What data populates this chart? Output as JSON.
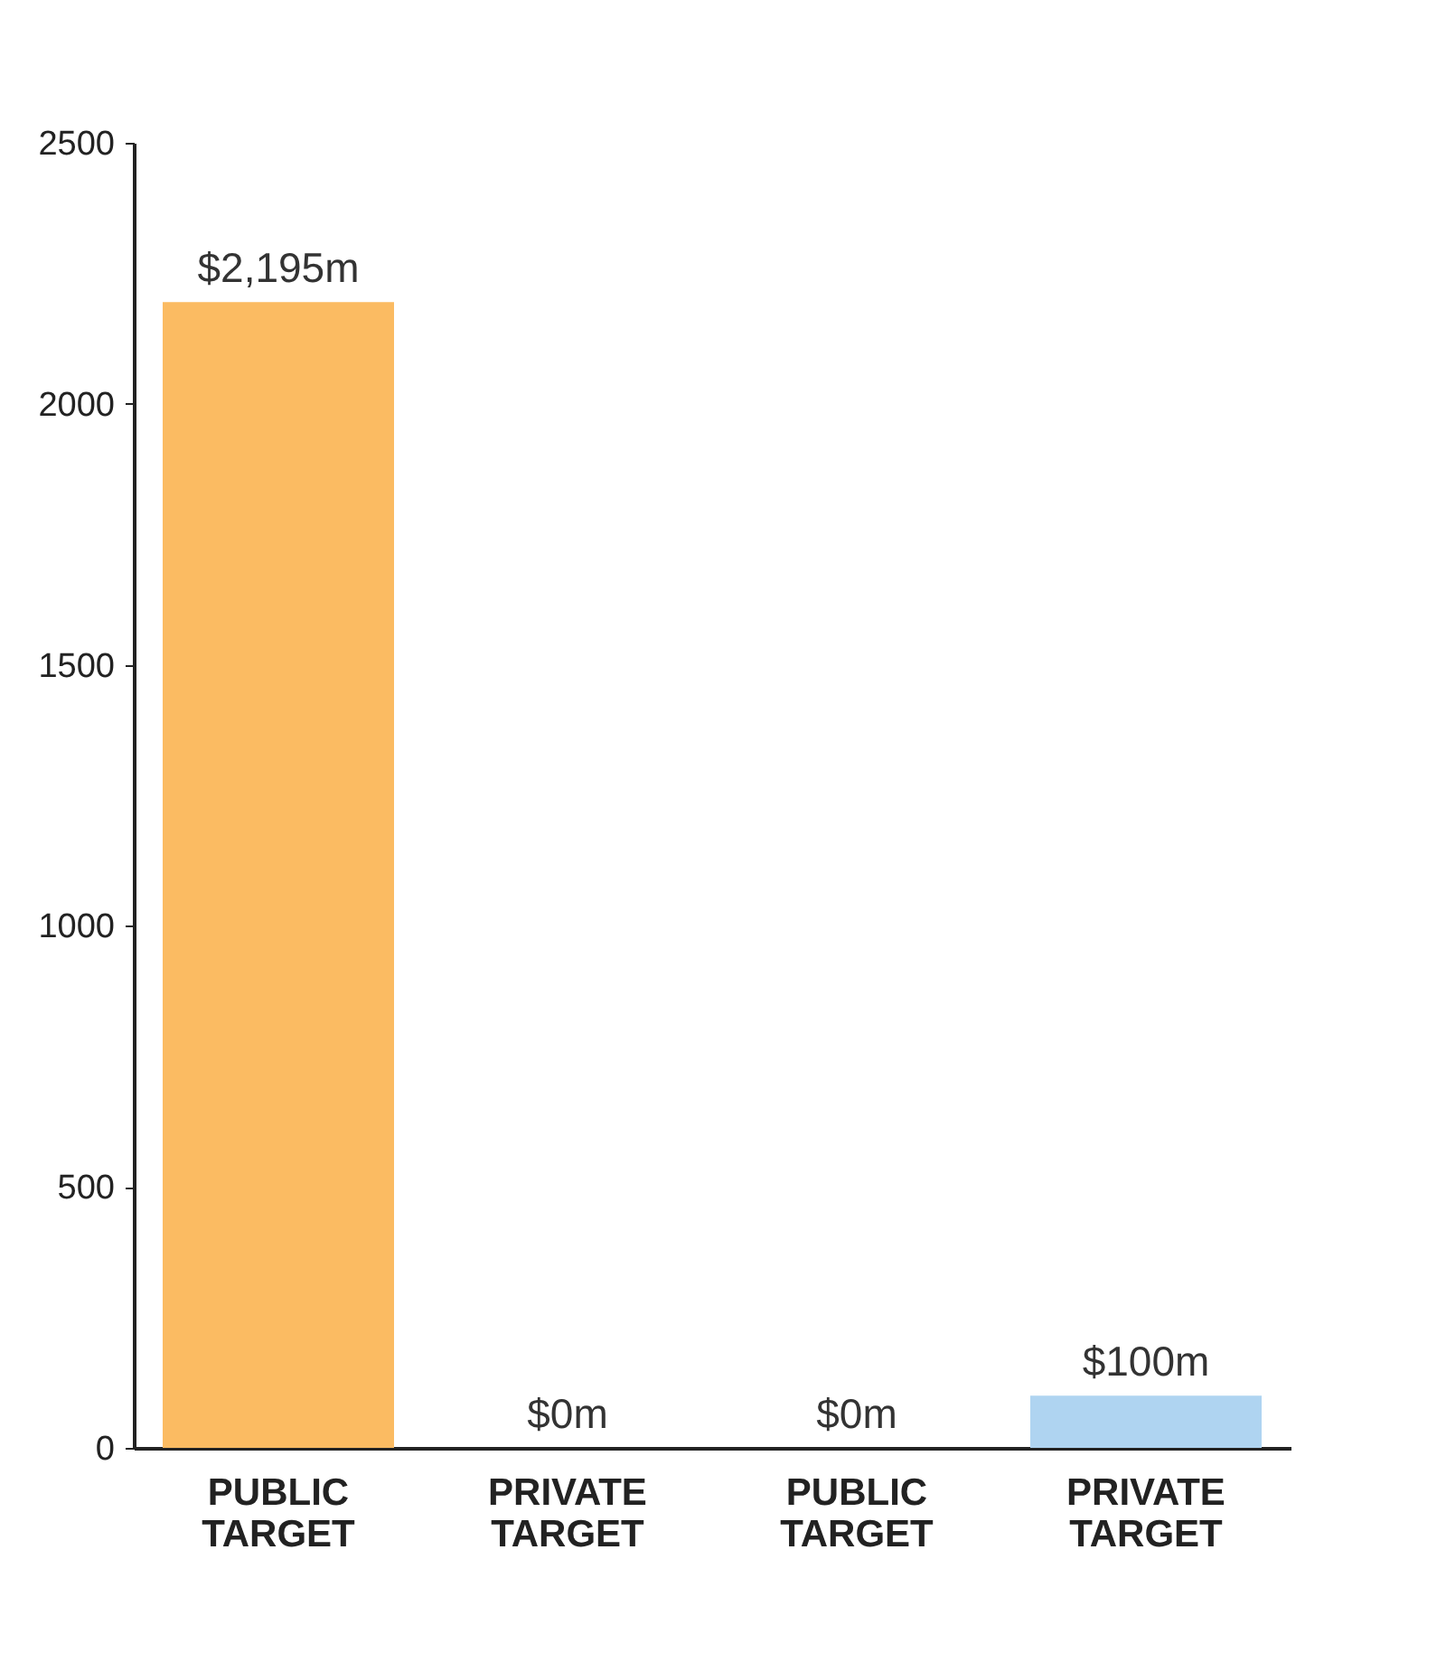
{
  "chart_data": {
    "type": "bar",
    "categories": [
      "PUBLIC\nTARGET",
      "PRIVATE\nTARGET",
      "PUBLIC\nTARGET",
      "PRIVATE\nTARGET"
    ],
    "values": [
      2195,
      0,
      0,
      100
    ],
    "colors": [
      "#fbbb62",
      "#fbbb62",
      "#afd4f1",
      "#afd4f1"
    ],
    "value_labels": [
      "$2,195m",
      "$0m",
      "$0m",
      "$100m"
    ],
    "ylim": [
      0,
      2500
    ],
    "yticks": [
      0,
      500,
      1000,
      1500,
      2000,
      2500
    ],
    "grid": false
  }
}
